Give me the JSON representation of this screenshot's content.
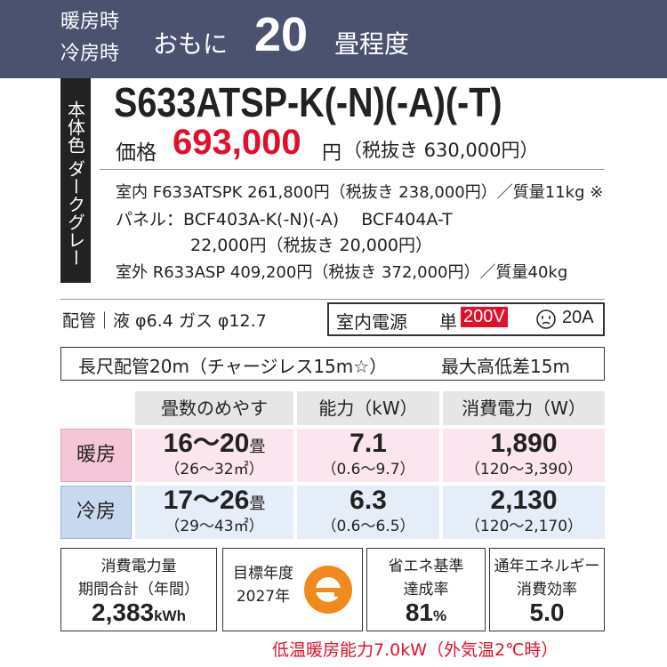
{
  "header": {
    "mode_heat": "暖房時",
    "mode_cool": "冷房時",
    "prefix": "おもに",
    "size": "20",
    "suffix": "畳程度"
  },
  "body_color": "本体色 ダークグレー",
  "model": "S633ATSP-K(-N)(-A)(-T)",
  "price": {
    "label": "価格",
    "value": "693,000",
    "unit": "円",
    "tax_excluded": "（税抜き 630,000円）"
  },
  "components": [
    "室内 F633ATSPK 261,800円（税抜き 238,000円）／質量11kg ※",
    "パネル：BCF403A-K(-N)(-A)　 BCF404A-T",
    "22,000円（税抜き 20,000円）",
    "室外 R633ASP 409,200円（税抜き 372,000円）／質量40kg"
  ],
  "piping": "配管｜液 φ6.4 ガス φ12.7",
  "power": {
    "label": "室内電源",
    "phase": "単",
    "voltage": "200V",
    "current": "20A"
  },
  "long_piping": "長尺配管20m（チャージレス15m☆）",
  "max_height": "最大高低差15m",
  "table": {
    "headers": [
      "畳数のめやす",
      "能力（kW）",
      "消費電力（W）"
    ],
    "rows": [
      {
        "mode": "暖房",
        "cells": [
          {
            "main": "16～20",
            "unit": "畳",
            "range": "（26～32㎡）"
          },
          {
            "main": "7.1",
            "range": "（0.6～9.7）"
          },
          {
            "main": "1,890",
            "range": "（120～3,390）"
          }
        ]
      },
      {
        "mode": "冷房",
        "cells": [
          {
            "main": "17～26",
            "unit": "畳",
            "range": "（29～43㎡）"
          },
          {
            "main": "6.3",
            "range": "（0.6～6.5）"
          },
          {
            "main": "2,130",
            "range": "（120～2,170）"
          }
        ]
      }
    ]
  },
  "ratings": [
    {
      "lines": [
        "消費電力量",
        "期間合計（年間）"
      ],
      "value": "2,383",
      "unit": "kWh"
    },
    {
      "lines": [
        "目標年度",
        "2027年"
      ]
    },
    {
      "lines": [
        "省エネ基準",
        "達成率"
      ],
      "value": "81",
      "unit": "%"
    },
    {
      "lines": [
        "通年エネルギー",
        "消費効率"
      ],
      "value": "5.0"
    }
  ],
  "footnote": "低温暖房能力7.0kW（外気温2℃時）"
}
